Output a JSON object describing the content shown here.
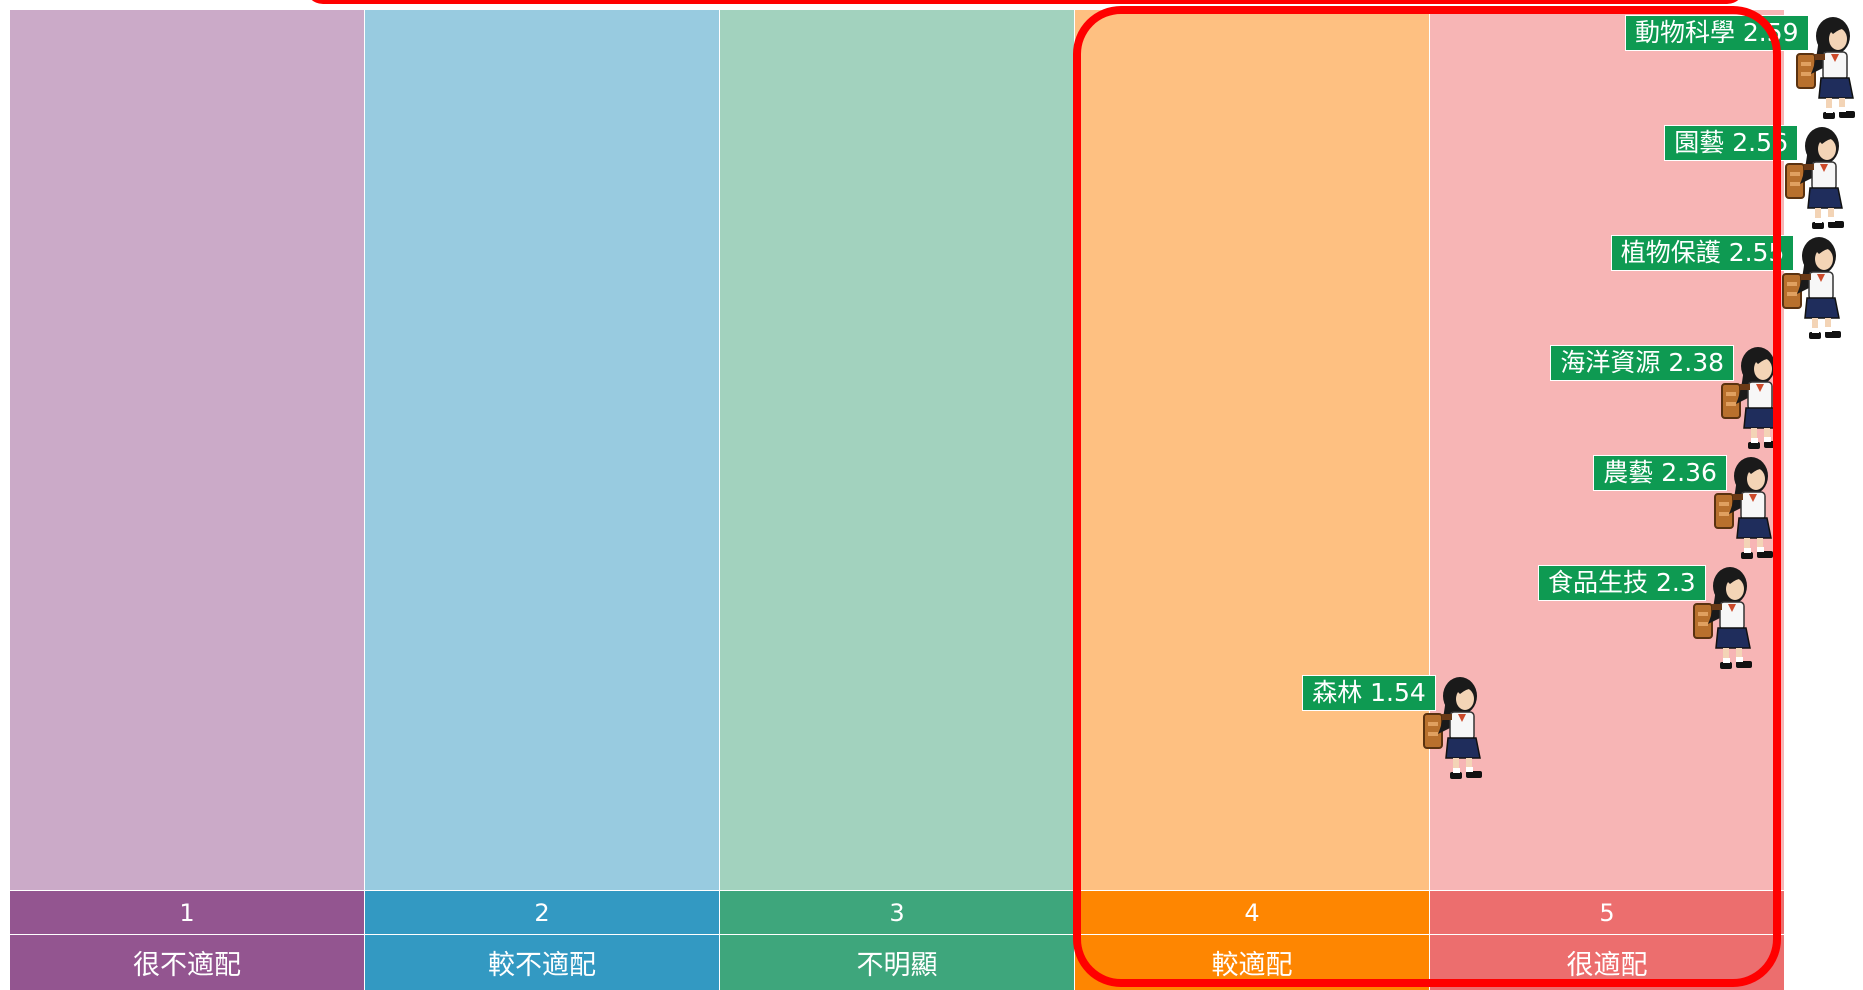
{
  "chart_data": {
    "type": "scatter",
    "x_scale": {
      "categories": [
        {
          "value": "1",
          "label": "很不適配",
          "color": "#cbaac8",
          "header_color": "#935590"
        },
        {
          "value": "2",
          "label": "較不適配",
          "color": "#98cbe0",
          "header_color": "#3399c2"
        },
        {
          "value": "3",
          "label": "不明顯",
          "color": "#a2d2be",
          "header_color": "#3ea67c"
        },
        {
          "value": "4",
          "label": "較適配",
          "color": "#fec081",
          "header_color": "#fe8601"
        },
        {
          "value": "5",
          "label": "很適配",
          "color": "#f7b5b5",
          "header_color": "#ec6e6e"
        }
      ],
      "xlim": [
        -2.5,
        2.5
      ]
    },
    "points": [
      {
        "name": "動物科學",
        "value": 2.59,
        "label": "動物科學 2.59"
      },
      {
        "name": "園藝",
        "value": 2.56,
        "label": "園藝 2.56"
      },
      {
        "name": "植物保護",
        "value": 2.55,
        "label": "植物保護 2.55"
      },
      {
        "name": "海洋資源",
        "value": 2.38,
        "label": "海洋資源 2.38"
      },
      {
        "name": "農藝",
        "value": 2.36,
        "label": "農藝 2.36"
      },
      {
        "name": "食品生技",
        "value": 2.3,
        "label": "食品生技 2.3"
      },
      {
        "name": "森林",
        "value": 1.54,
        "label": "森林 1.54"
      }
    ],
    "marker_icon": "student-girl-icon",
    "label_color": "#0e9a52",
    "highlight_color": "#ff0000",
    "highlight_categories": [
      "4",
      "5"
    ]
  }
}
